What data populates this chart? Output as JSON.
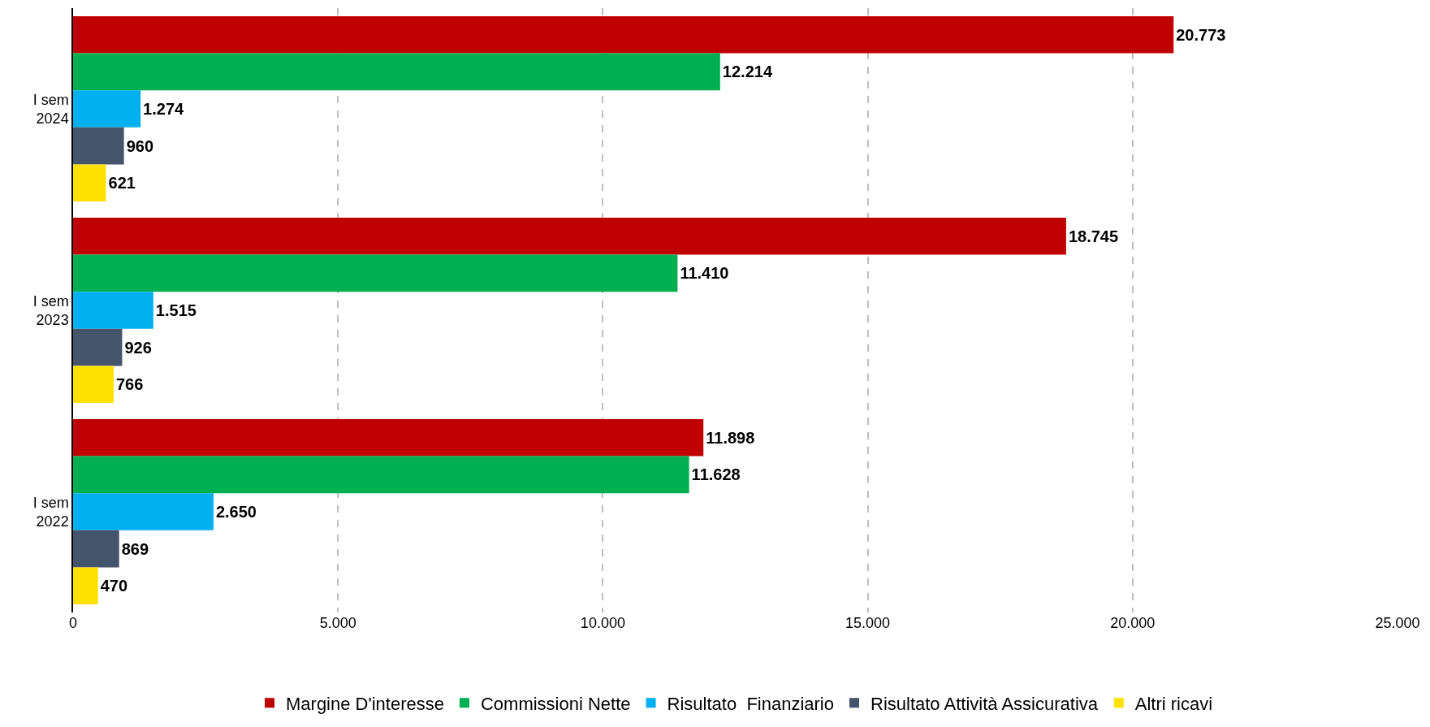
{
  "chart_data": {
    "type": "bar",
    "orientation": "horizontal",
    "categories": [
      "I sem 2024",
      "I sem 2023",
      "I sem 2022"
    ],
    "series": [
      {
        "name": "Margine D'interesse",
        "color": "#c00000",
        "values": [
          20773,
          18745,
          11898
        ],
        "value_labels": [
          "20.773",
          "18.745",
          "11.898"
        ]
      },
      {
        "name": "Commissioni Nette",
        "color": "#00b050",
        "values": [
          12214,
          11410,
          11628
        ],
        "value_labels": [
          "12.214",
          "11.410",
          "11.628"
        ]
      },
      {
        "name": "Risultato  Finanziario",
        "color": "#00b0f0",
        "values": [
          1274,
          1515,
          2650
        ],
        "value_labels": [
          "1.274",
          "1.515",
          "2.650"
        ]
      },
      {
        "name": "Risultato Attività Assicurativa",
        "color": "#44546a",
        "values": [
          960,
          926,
          869
        ],
        "value_labels": [
          "960",
          "926",
          "869"
        ]
      },
      {
        "name": "Altri ricavi",
        "color": "#ffe100",
        "values": [
          621,
          766,
          470
        ],
        "value_labels": [
          "621",
          "766",
          "470"
        ]
      }
    ],
    "xlim": [
      0,
      25000
    ],
    "xticks": [
      0,
      {
        "value": 5000,
        "label": "5.000"
      },
      {
        "value": 10000,
        "label": "10.000"
      },
      {
        "value": 15000,
        "label": "15.000"
      },
      {
        "value": 20000,
        "label": "20.000"
      },
      {
        "value": 25000,
        "label": "25.000"
      }
    ],
    "grid": "x",
    "legend": "bottom"
  }
}
